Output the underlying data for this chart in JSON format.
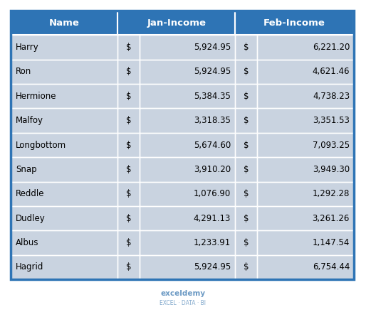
{
  "headers": [
    "Name",
    "Jan-Income",
    "Feb-Income"
  ],
  "rows": [
    [
      "Harry",
      "$",
      "5,924.95",
      "$",
      "6,221.20"
    ],
    [
      "Ron",
      "$",
      "5,924.95",
      "$",
      "4,621.46"
    ],
    [
      "Hermione",
      "$",
      "5,384.35",
      "$",
      "4,738.23"
    ],
    [
      "Malfoy",
      "$",
      "3,318.35",
      "$",
      "3,351.53"
    ],
    [
      "Longbottom",
      "$",
      "5,674.60",
      "$",
      "7,093.25"
    ],
    [
      "Snap",
      "$",
      "3,910.20",
      "$",
      "3,949.30"
    ],
    [
      "Reddle",
      "$",
      "1,076.90",
      "$",
      "1,292.28"
    ],
    [
      "Dudley",
      "$",
      "4,291.13",
      "$",
      "3,261.26"
    ],
    [
      "Albus",
      "$",
      "1,233.91",
      "$",
      "1,147.54"
    ],
    [
      "Hagrid",
      "$",
      "5,924.95",
      "$",
      "6,754.44"
    ]
  ],
  "header_bg_color": "#2E74B5",
  "header_text_color": "#FFFFFF",
  "row_bg_color": "#C9D3E0",
  "border_color": "#FFFFFF",
  "text_color": "#000000",
  "watermark_text": "exceldemy",
  "watermark_subtext": "EXCEL · DATA · BI",
  "fig_bg_color": "#FFFFFF",
  "outer_border_color": "#2E74B5",
  "header_fontsize": 9.5,
  "cell_fontsize": 8.5
}
